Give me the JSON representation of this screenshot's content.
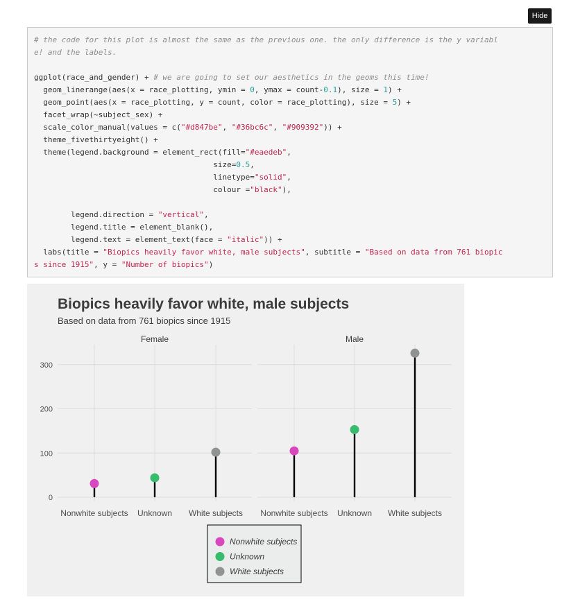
{
  "hide_button": {
    "label": "Hide"
  },
  "code": {
    "lines": [
      [
        {
          "t": "cm",
          "s": "# the code for this plot is almost the same as the previous one. the only difference is the y variabl"
        }
      ],
      [
        {
          "t": "cm",
          "s": "e! and the labels."
        }
      ],
      [],
      [
        {
          "t": "",
          "s": "ggplot(race_and_gender) + "
        },
        {
          "t": "cm",
          "s": "# we are going to set our aesthetics in the geoms this time!"
        }
      ],
      [
        {
          "t": "",
          "s": "  geom_linerange(aes(x = race_plotting, ymin = "
        },
        {
          "t": "nu",
          "s": "0"
        },
        {
          "t": "",
          "s": ", ymax = count-"
        },
        {
          "t": "nu",
          "s": "0.1"
        },
        {
          "t": "",
          "s": "), size = "
        },
        {
          "t": "nu",
          "s": "1"
        },
        {
          "t": "",
          "s": ") +"
        }
      ],
      [
        {
          "t": "",
          "s": "  geom_point(aes(x = race_plotting, y = count, color = race_plotting), size = "
        },
        {
          "t": "nu",
          "s": "5"
        },
        {
          "t": "",
          "s": ") +"
        }
      ],
      [
        {
          "t": "",
          "s": "  facet_wrap(~subject_sex) +"
        }
      ],
      [
        {
          "t": "",
          "s": "  scale_color_manual(values = c("
        },
        {
          "t": "st",
          "s": "\"#d847be\""
        },
        {
          "t": "",
          "s": ", "
        },
        {
          "t": "st",
          "s": "\"#36bc6c\""
        },
        {
          "t": "",
          "s": ", "
        },
        {
          "t": "st",
          "s": "\"#909392\""
        },
        {
          "t": "",
          "s": ")) +"
        }
      ],
      [
        {
          "t": "",
          "s": "  theme_fivethirtyeight() +"
        }
      ],
      [
        {
          "t": "",
          "s": "  theme(legend.background = element_rect(fill="
        },
        {
          "t": "st",
          "s": "\"#eaedeb\""
        },
        {
          "t": "",
          "s": ","
        }
      ],
      [
        {
          "t": "",
          "s": "                                       size="
        },
        {
          "t": "nu",
          "s": "0.5"
        },
        {
          "t": "",
          "s": ","
        }
      ],
      [
        {
          "t": "",
          "s": "                                       linetype="
        },
        {
          "t": "st",
          "s": "\"solid\""
        },
        {
          "t": "",
          "s": ","
        }
      ],
      [
        {
          "t": "",
          "s": "                                       colour ="
        },
        {
          "t": "st",
          "s": "\"black\""
        },
        {
          "t": "",
          "s": "),"
        }
      ],
      [],
      [
        {
          "t": "",
          "s": "        legend.direction = "
        },
        {
          "t": "st",
          "s": "\"vertical\""
        },
        {
          "t": "",
          "s": ","
        }
      ],
      [
        {
          "t": "",
          "s": "        legend.title = element_blank(),"
        }
      ],
      [
        {
          "t": "",
          "s": "        legend.text = element_text(face = "
        },
        {
          "t": "st",
          "s": "\"italic\""
        },
        {
          "t": "",
          "s": ")) +"
        }
      ],
      [
        {
          "t": "",
          "s": "  labs(title = "
        },
        {
          "t": "st",
          "s": "\"Biopics heavily favor white, male subjects\""
        },
        {
          "t": "",
          "s": ", subtitle = "
        },
        {
          "t": "st",
          "s": "\"Based on data from 761 biopic"
        }
      ],
      [
        {
          "t": "st",
          "s": "s since 1915\""
        },
        {
          "t": "",
          "s": ", y = "
        },
        {
          "t": "st",
          "s": "\"Number of biopics\""
        },
        {
          "t": "",
          "s": ")"
        }
      ]
    ]
  },
  "chart_data": {
    "type": "lollipop",
    "title": "Biopics heavily favor white, male subjects",
    "subtitle": "Based on data from 761 biopics since 1915",
    "ylabel": "",
    "ylim": [
      0,
      335
    ],
    "yticks": [
      0,
      100,
      200,
      300
    ],
    "grid": true,
    "categories": [
      "Nonwhite subjects",
      "Unknown",
      "White subjects"
    ],
    "colors": [
      "#d847be",
      "#36bc6c",
      "#909392"
    ],
    "facets": [
      {
        "name": "Female",
        "values": [
          31,
          44,
          102
        ]
      },
      {
        "name": "Male",
        "values": [
          105,
          153,
          326
        ]
      }
    ],
    "legend": {
      "position": "bottom",
      "entries": [
        "Nonwhite subjects",
        "Unknown",
        "White subjects"
      ],
      "background": "#eaedeb"
    }
  }
}
